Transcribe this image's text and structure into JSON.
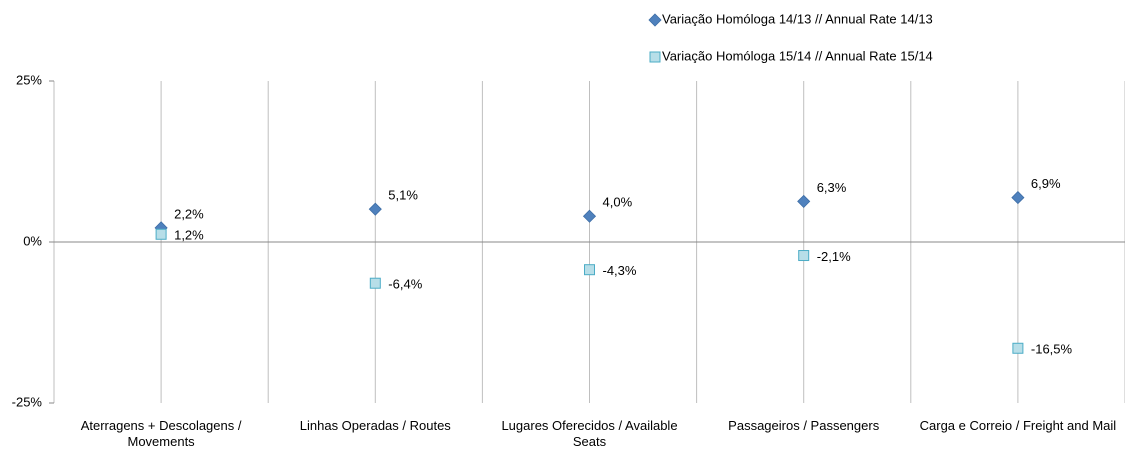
{
  "chart_data": {
    "type": "point",
    "categories": [
      "Aterragens + Descolagens / Movements",
      "Linhas Operadas / Routes",
      "Lugares Oferecidos / Available Seats",
      "Passageiros / Passengers",
      "Carga e Correio / Freight and Mail"
    ],
    "series": [
      {
        "name": "Variação Homóloga 14/13 // Annual Rate 14/13",
        "color": "#4f81bd",
        "marker": "diamond",
        "values": [
          2.2,
          5.1,
          4.0,
          6.3,
          6.9
        ],
        "value_labels": [
          "2,2%",
          "5,1%",
          "4,0%",
          "6,3%",
          "6,9%"
        ]
      },
      {
        "name": "Variação Homóloga 15/14 // Annual Rate 15/14",
        "color": "#b7dee8",
        "marker": "square",
        "values": [
          1.2,
          -6.4,
          -4.3,
          -2.1,
          -16.5
        ],
        "value_labels": [
          "1,2%",
          "-6,4%",
          "-4,3%",
          "-2,1%",
          "-16,5%"
        ]
      }
    ],
    "ylim": [
      -25,
      25
    ],
    "yticks": [
      {
        "value": -25,
        "label": "-25%"
      },
      {
        "value": 0,
        "label": "0%"
      },
      {
        "value": 25,
        "label": "25%"
      }
    ],
    "grid": true
  }
}
